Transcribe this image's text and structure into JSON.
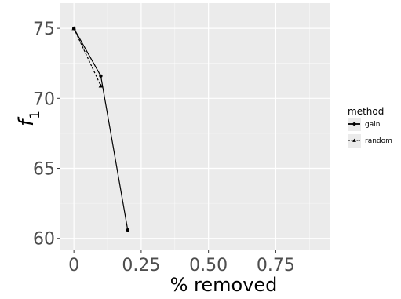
{
  "chart_data": {
    "type": "line",
    "xlabel": "% removed",
    "ylabel": "f",
    "ylabel_subscript": "1",
    "xlim": [
      -0.05,
      0.95
    ],
    "ylim": [
      59.2,
      76.8
    ],
    "x_ticks": [
      0,
      0.25,
      0.5,
      0.75
    ],
    "x_tick_labels": [
      "0",
      "0.25",
      "0.50",
      "0.75"
    ],
    "y_ticks": [
      60,
      65,
      70,
      75
    ],
    "y_tick_labels": [
      "60",
      "65",
      "70",
      "75"
    ],
    "grid": true,
    "legend": {
      "title": "method",
      "position": "right"
    },
    "series": [
      {
        "name": "gain",
        "line_style": "solid",
        "marker": "circle",
        "x": [
          0,
          0.1,
          0.2
        ],
        "y": [
          75,
          71.6,
          60.6
        ]
      },
      {
        "name": "random",
        "line_style": "dashed",
        "marker": "triangle",
        "x": [
          0,
          0.1
        ],
        "y": [
          75,
          70.9
        ]
      }
    ],
    "colors": {
      "panel": "#ebebeb",
      "grid_major": "#ffffff",
      "line": "#000000",
      "tick_text": "#4d4d4d",
      "tick_mark": "#333333"
    }
  }
}
